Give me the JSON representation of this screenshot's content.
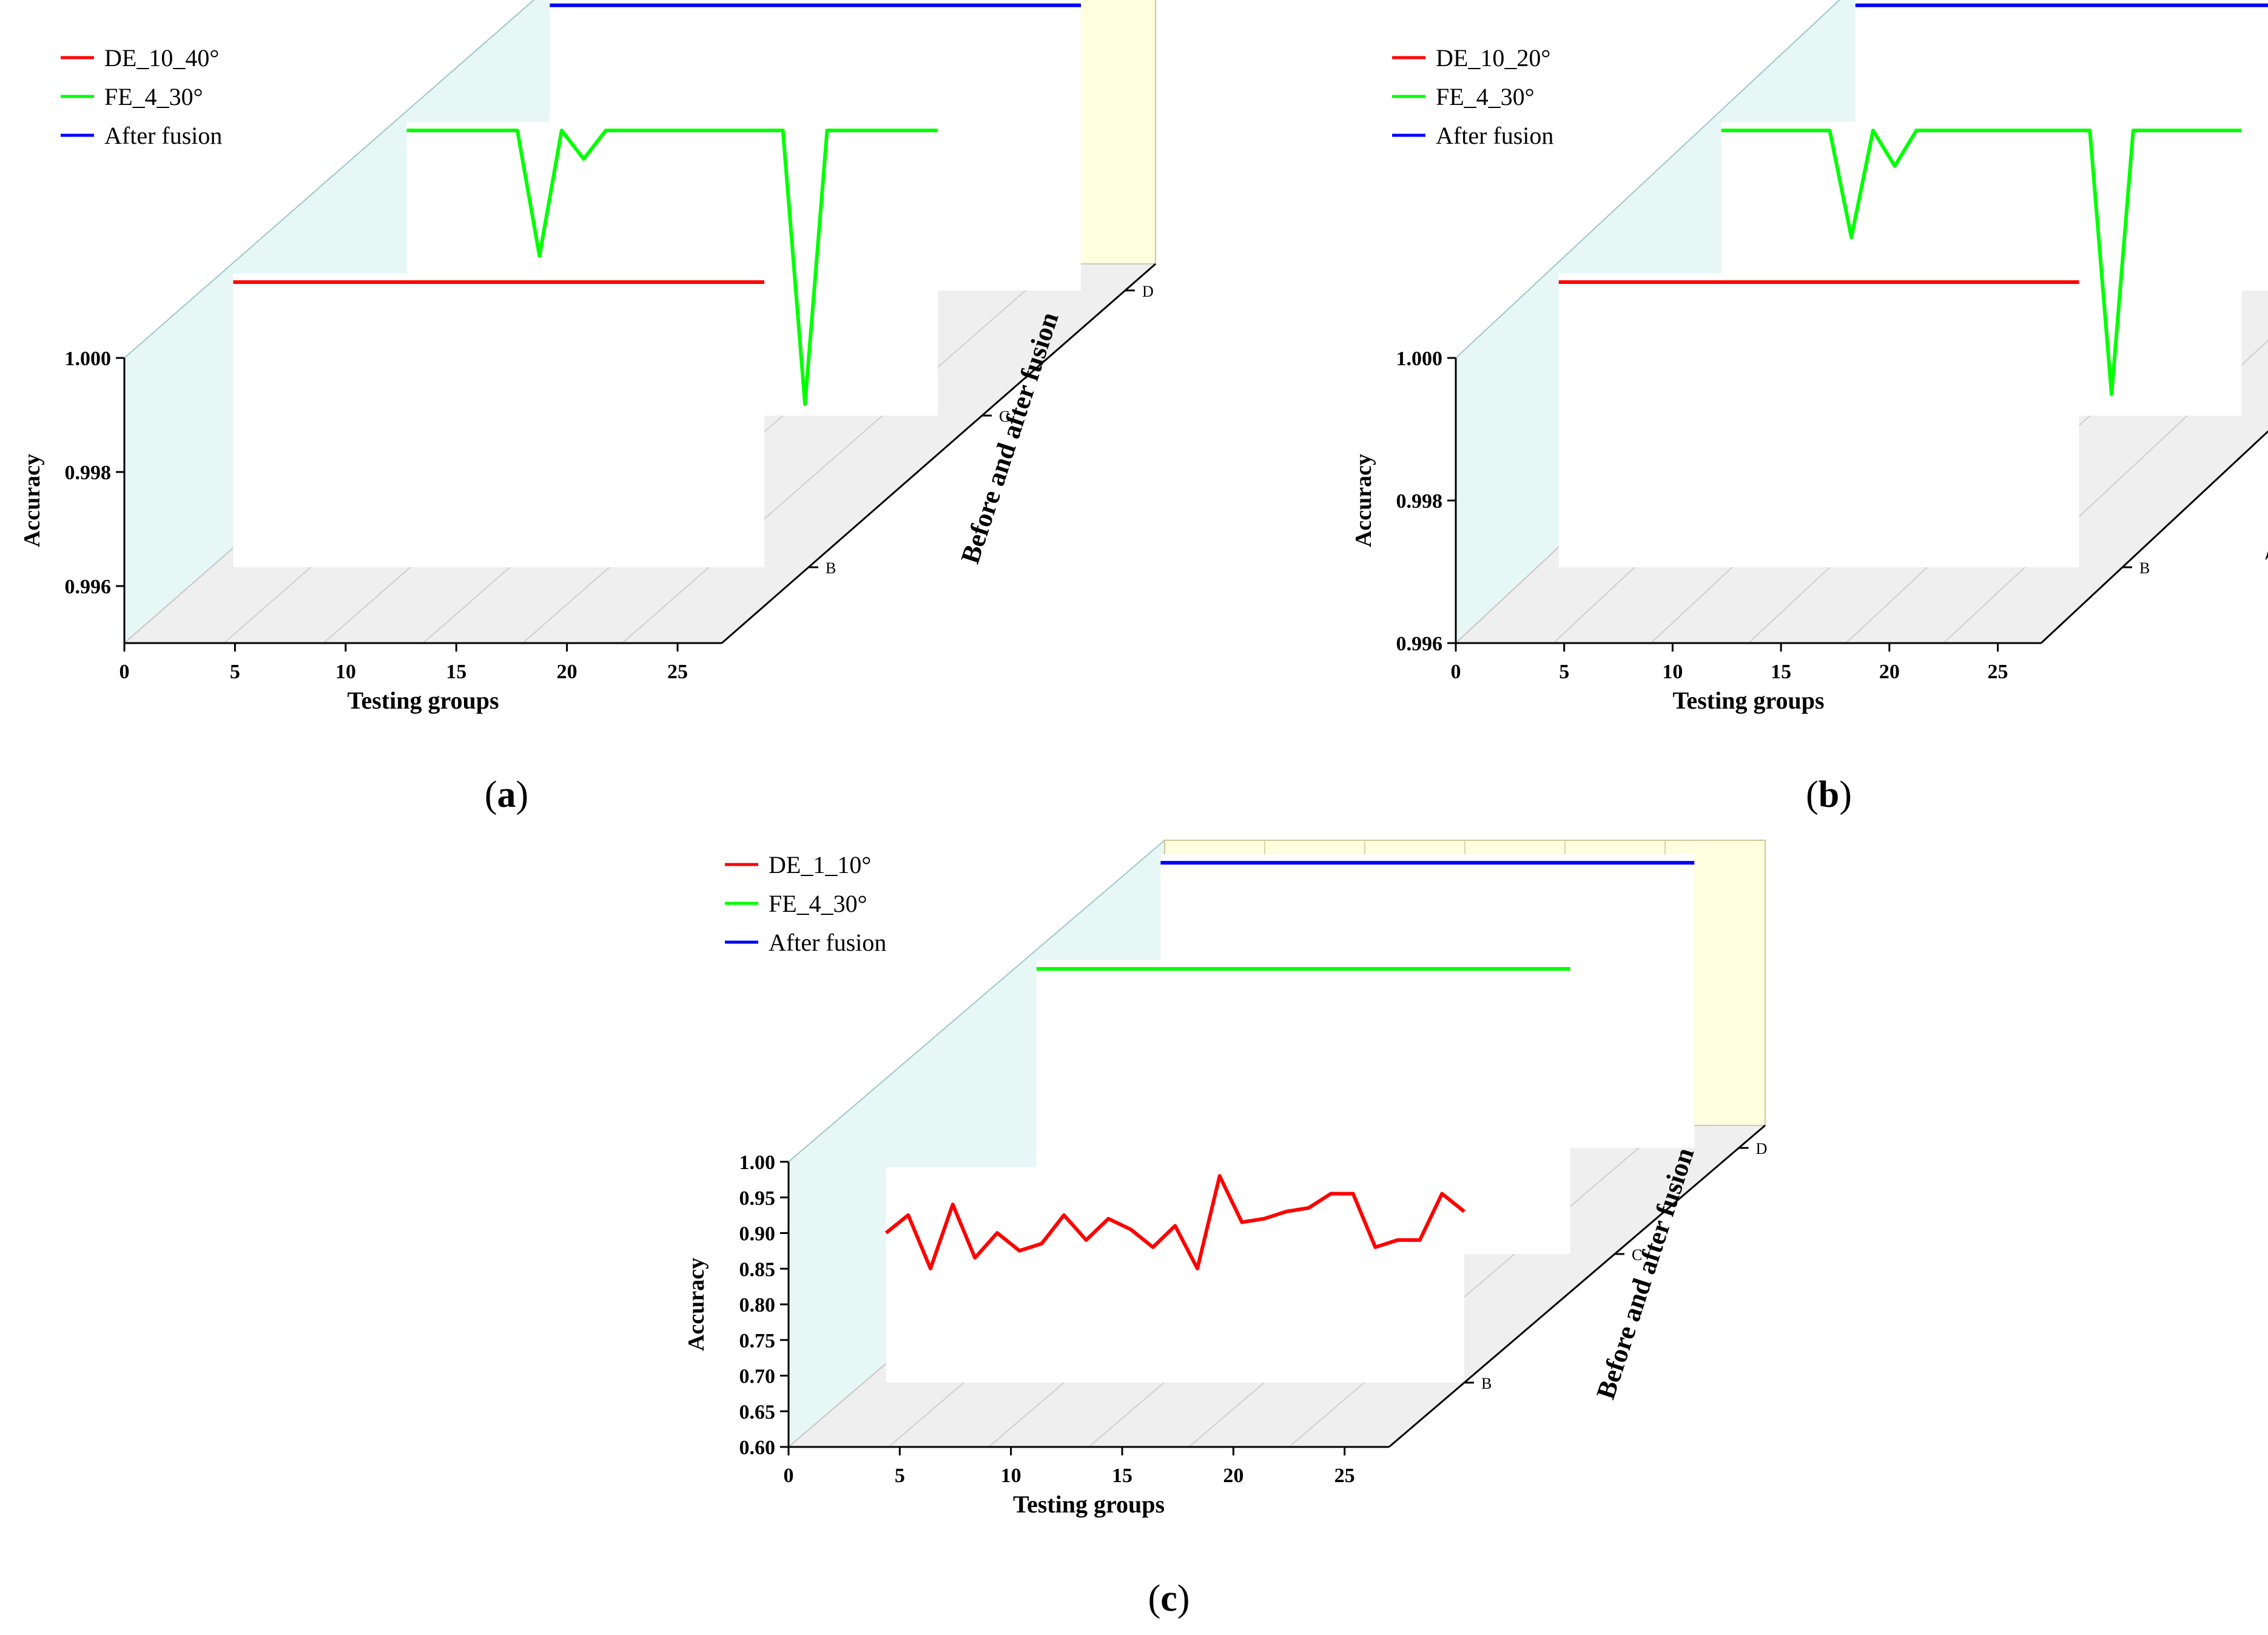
{
  "figure": {
    "caption_labels": [
      {
        "open": "(",
        "letter": "a",
        "close": ")"
      },
      {
        "open": "(",
        "letter": "b",
        "close": ")"
      },
      {
        "open": "(",
        "letter": "c",
        "close": ")"
      }
    ]
  },
  "colors": {
    "de": "#ff0000",
    "fe": "#00ff00",
    "fusion": "#0000ff",
    "left_wall": "#e6f7f6",
    "back_wall": "#ffffdf",
    "floor": "#efefef",
    "axis": "#000000"
  },
  "chart_data": [
    {
      "type": "line",
      "panel": "a",
      "xlabel": "Testing groups",
      "ylabel": "Accuracy",
      "zlabel": "Before and after fusion",
      "x_ticks": [
        "0",
        "5",
        "10",
        "15",
        "20",
        "25"
      ],
      "y_ticks": [
        "0.996",
        "0.998",
        "1.000"
      ],
      "z_ticks": [
        "B",
        "C",
        "D"
      ],
      "xlim": [
        0,
        27
      ],
      "ylim": [
        0.995,
        1.0
      ],
      "series": [
        {
          "name": "DE_10_40°",
          "row": "B",
          "color": "#ff0000",
          "values": [
            1,
            1,
            1,
            1,
            1,
            1,
            1,
            1,
            1,
            1,
            1,
            1,
            1,
            1,
            1,
            1,
            1,
            1,
            1,
            1,
            1,
            1,
            1,
            1,
            1
          ]
        },
        {
          "name": "FE_4_30°",
          "row": "C",
          "color": "#00ff00",
          "values": [
            1,
            1,
            1,
            1,
            1,
            1,
            0.9978,
            1,
            0.9995,
            1,
            1,
            1,
            1,
            1,
            1,
            1,
            1,
            1,
            0.9952,
            1,
            1,
            1,
            1,
            1,
            1
          ]
        },
        {
          "name": "After fusion",
          "row": "D",
          "color": "#0000ff",
          "values": [
            1,
            1,
            1,
            1,
            1,
            1,
            1,
            1,
            1,
            1,
            1,
            1,
            1,
            1,
            1,
            1,
            1,
            1,
            1,
            1,
            1,
            1,
            1,
            1,
            1
          ]
        }
      ]
    },
    {
      "type": "line",
      "panel": "b",
      "xlabel": "Testing groups",
      "ylabel": "Accuracy",
      "zlabel": "Before and after fusion",
      "x_ticks": [
        "0",
        "5",
        "10",
        "15",
        "20",
        "25"
      ],
      "y_ticks": [
        "0.996",
        "0.998",
        "1.000"
      ],
      "z_ticks": [
        "B",
        "C",
        "D"
      ],
      "xlim": [
        0,
        27
      ],
      "ylim": [
        0.996,
        1.0
      ],
      "series": [
        {
          "name": "DE_10_20°",
          "row": "B",
          "color": "#ff0000",
          "values": [
            1,
            1,
            1,
            1,
            1,
            1,
            1,
            1,
            1,
            1,
            1,
            1,
            1,
            1,
            1,
            1,
            1,
            1,
            1,
            1,
            1,
            1,
            1,
            1,
            1
          ]
        },
        {
          "name": "FE_4_30°",
          "row": "C",
          "color": "#00ff00",
          "values": [
            1,
            1,
            1,
            1,
            1,
            1,
            0.9985,
            1,
            0.9995,
            1,
            1,
            1,
            1,
            1,
            1,
            1,
            1,
            1,
            0.9963,
            1,
            1,
            1,
            1,
            1,
            1
          ]
        },
        {
          "name": "After fusion",
          "row": "D",
          "color": "#0000ff",
          "values": [
            1,
            1,
            1,
            1,
            1,
            1,
            1,
            1,
            1,
            1,
            1,
            1,
            1,
            1,
            1,
            1,
            1,
            1,
            1,
            1,
            1,
            1,
            1,
            1,
            1
          ]
        }
      ]
    },
    {
      "type": "line",
      "panel": "c",
      "xlabel": "Testing groups",
      "ylabel": "Accuracy",
      "zlabel": "Before and after fusion",
      "x_ticks": [
        "0",
        "5",
        "10",
        "15",
        "20",
        "25"
      ],
      "y_ticks": [
        "0.60",
        "0.65",
        "0.70",
        "0.75",
        "0.80",
        "0.85",
        "0.90",
        "0.95",
        "1.00"
      ],
      "z_ticks": [
        "B",
        "C",
        "D"
      ],
      "xlim": [
        0,
        27
      ],
      "ylim": [
        0.6,
        1.0
      ],
      "series": [
        {
          "name": "DE_1_10°",
          "row": "B",
          "color": "#ff0000",
          "values": [
            0.81,
            0.835,
            0.76,
            0.85,
            0.775,
            0.81,
            0.785,
            0.795,
            0.835,
            0.8,
            0.83,
            0.815,
            0.79,
            0.82,
            0.76,
            0.89,
            0.825,
            0.83,
            0.84,
            0.845,
            0.865,
            0.865,
            0.79,
            0.8,
            0.8,
            0.865,
            0.84
          ]
        },
        {
          "name": "FE_4_30°",
          "row": "C",
          "color": "#00ff00",
          "values": [
            1,
            1,
            1,
            1,
            1,
            1,
            1,
            1,
            1,
            1,
            1,
            1,
            1,
            1,
            1,
            1,
            1,
            1,
            1,
            1,
            1,
            1,
            1,
            1,
            1
          ]
        },
        {
          "name": "After fusion",
          "row": "D",
          "color": "#0000ff",
          "values": [
            1,
            1,
            1,
            1,
            1,
            1,
            1,
            1,
            1,
            1,
            1,
            1,
            1,
            1,
            1,
            1,
            1,
            1,
            1,
            1,
            1,
            1,
            1,
            1,
            1
          ]
        }
      ]
    }
  ]
}
